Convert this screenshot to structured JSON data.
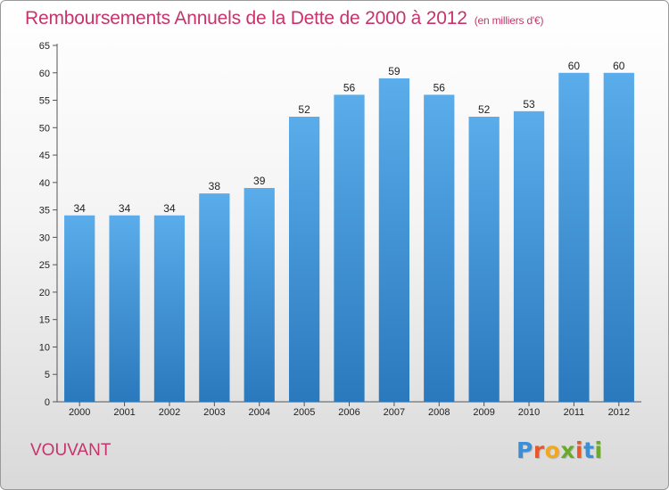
{
  "chart_data": {
    "type": "bar",
    "title": "Remboursements Annuels de la Dette de 2000 à 2012",
    "subtitle": "(en milliers d'€)",
    "categories": [
      "2000",
      "2001",
      "2002",
      "2003",
      "2004",
      "2005",
      "2006",
      "2007",
      "2008",
      "2009",
      "2010",
      "2011",
      "2012"
    ],
    "values": [
      34,
      34,
      34,
      38,
      39,
      52,
      56,
      59,
      56,
      52,
      53,
      60,
      60
    ],
    "ylim": [
      0,
      65
    ],
    "yticks": [
      0,
      5,
      10,
      15,
      20,
      25,
      30,
      35,
      40,
      45,
      50,
      55,
      60,
      65
    ],
    "xlabel": "",
    "ylabel": "",
    "grid": false,
    "bar_color_top": "#5aacea",
    "bar_color_bottom": "#2a79bd"
  },
  "footer": {
    "commune": "VOUVANT",
    "logo_letters": [
      "P",
      "r",
      "o",
      "x",
      "i",
      "t",
      "i"
    ],
    "logo_colors": [
      "#3a8fd8",
      "#e8562a",
      "#f2a81d",
      "#6aaa2a",
      "#e8562a",
      "#3a8fd8",
      "#6aaa2a"
    ]
  },
  "colors": {
    "title": "#c8336b",
    "axis": "#555555"
  }
}
